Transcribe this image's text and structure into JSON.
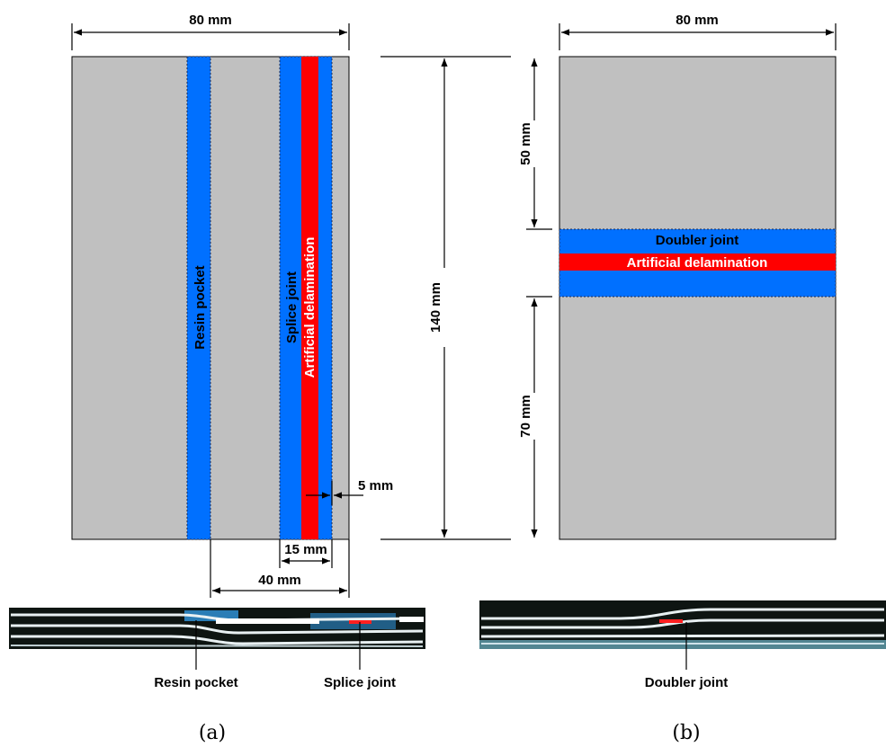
{
  "panel_a": {
    "width_label": "80 mm",
    "height_label": "140 mm",
    "resin_pocket_label": "Resin pocket",
    "splice_joint_label": "Splice joint",
    "delamination_label": "Artificial delamination",
    "gap_label": "5 mm",
    "splice_width_label": "15 mm",
    "offset_label": "40 mm",
    "photo_labels": {
      "resin_pocket": "Resin pocket",
      "splice_joint": "Splice joint"
    },
    "caption": "(a)"
  },
  "panel_b": {
    "width_label": "80 mm",
    "top_label": "50 mm",
    "bottom_label": "70 mm",
    "doubler_joint_label": "Doubler joint",
    "delamination_label": "Artificial delamination",
    "photo_labels": {
      "doubler_joint": "Doubler joint"
    },
    "caption": "(b)"
  },
  "colors": {
    "specimen": "#c0c0c0",
    "joint": "#0070ff",
    "delamination": "#ff0000"
  }
}
